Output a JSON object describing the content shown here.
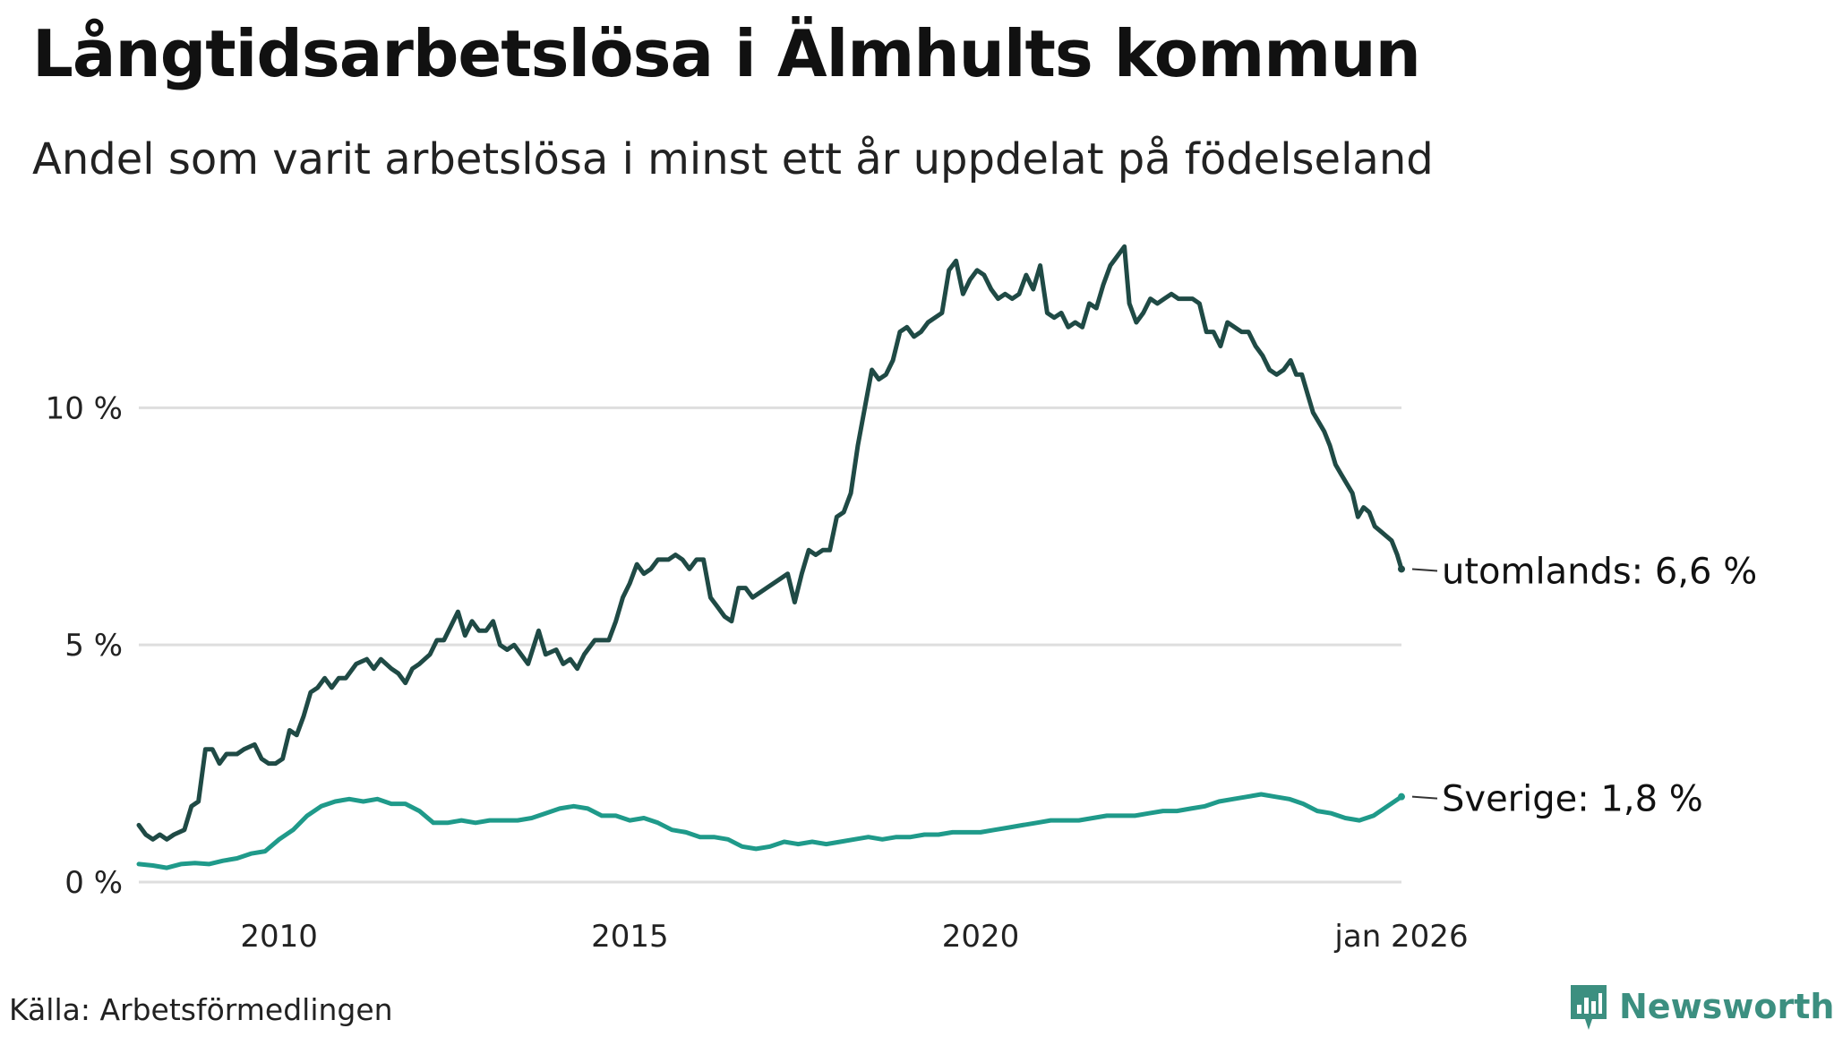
{
  "title": "Långtidsarbetslösa i Älmhults kommun",
  "subtitle": "Andel som varit arbetslösa i minst ett år uppdelat på födelseland",
  "source": "Källa: Arbetsförmedlingen",
  "brand": {
    "name": "Newsworthy",
    "icon": "newsworthy-logo-icon",
    "color": "#3c8f80"
  },
  "chart_data": {
    "type": "line",
    "title": "Långtidsarbetslösa i Älmhults kommun",
    "xlabel": "",
    "ylabel": "",
    "xlim": [
      2008.0,
      2026.0
    ],
    "ylim": [
      0,
      13.5
    ],
    "grid": true,
    "yticks": [
      {
        "value": 0,
        "label": "0 %"
      },
      {
        "value": 5,
        "label": "5 %"
      },
      {
        "value": 10,
        "label": "10 %"
      }
    ],
    "xticks": [
      {
        "value": 2010,
        "label": "2010"
      },
      {
        "value": 2015,
        "label": "2015"
      },
      {
        "value": 2020,
        "label": "2020"
      },
      {
        "value": 2026.0,
        "label": "jan 2026"
      }
    ],
    "series": [
      {
        "name": "utomlands",
        "end_label": "utomlands: 6,6 %",
        "color": "#1f4a45",
        "points": [
          [
            2008.0,
            1.2
          ],
          [
            2008.1,
            1.0
          ],
          [
            2008.2,
            0.9
          ],
          [
            2008.3,
            1.0
          ],
          [
            2008.4,
            0.9
          ],
          [
            2008.5,
            1.0
          ],
          [
            2008.65,
            1.1
          ],
          [
            2008.75,
            1.6
          ],
          [
            2008.85,
            1.7
          ],
          [
            2008.95,
            2.8
          ],
          [
            2009.05,
            2.8
          ],
          [
            2009.15,
            2.5
          ],
          [
            2009.25,
            2.7
          ],
          [
            2009.4,
            2.7
          ],
          [
            2009.5,
            2.8
          ],
          [
            2009.65,
            2.9
          ],
          [
            2009.75,
            2.6
          ],
          [
            2009.85,
            2.5
          ],
          [
            2009.95,
            2.5
          ],
          [
            2010.05,
            2.6
          ],
          [
            2010.15,
            3.2
          ],
          [
            2010.25,
            3.1
          ],
          [
            2010.35,
            3.5
          ],
          [
            2010.45,
            4.0
          ],
          [
            2010.55,
            4.1
          ],
          [
            2010.65,
            4.3
          ],
          [
            2010.75,
            4.1
          ],
          [
            2010.85,
            4.3
          ],
          [
            2010.95,
            4.3
          ],
          [
            2011.1,
            4.6
          ],
          [
            2011.25,
            4.7
          ],
          [
            2011.35,
            4.5
          ],
          [
            2011.45,
            4.7
          ],
          [
            2011.6,
            4.5
          ],
          [
            2011.7,
            4.4
          ],
          [
            2011.8,
            4.2
          ],
          [
            2011.9,
            4.5
          ],
          [
            2012.0,
            4.6
          ],
          [
            2012.15,
            4.8
          ],
          [
            2012.25,
            5.1
          ],
          [
            2012.35,
            5.1
          ],
          [
            2012.45,
            5.4
          ],
          [
            2012.55,
            5.7
          ],
          [
            2012.65,
            5.2
          ],
          [
            2012.75,
            5.5
          ],
          [
            2012.85,
            5.3
          ],
          [
            2012.95,
            5.3
          ],
          [
            2013.05,
            5.5
          ],
          [
            2013.15,
            5.0
          ],
          [
            2013.25,
            4.9
          ],
          [
            2013.35,
            5.0
          ],
          [
            2013.45,
            4.8
          ],
          [
            2013.55,
            4.6
          ],
          [
            2013.7,
            5.3
          ],
          [
            2013.8,
            4.8
          ],
          [
            2013.95,
            4.9
          ],
          [
            2014.05,
            4.6
          ],
          [
            2014.15,
            4.7
          ],
          [
            2014.25,
            4.5
          ],
          [
            2014.35,
            4.8
          ],
          [
            2014.5,
            5.1
          ],
          [
            2014.7,
            5.1
          ],
          [
            2014.8,
            5.5
          ],
          [
            2014.9,
            6.0
          ],
          [
            2015.0,
            6.3
          ],
          [
            2015.1,
            6.7
          ],
          [
            2015.2,
            6.5
          ],
          [
            2015.3,
            6.6
          ],
          [
            2015.4,
            6.8
          ],
          [
            2015.55,
            6.8
          ],
          [
            2015.65,
            6.9
          ],
          [
            2015.75,
            6.8
          ],
          [
            2015.85,
            6.6
          ],
          [
            2015.95,
            6.8
          ],
          [
            2016.05,
            6.8
          ],
          [
            2016.15,
            6.0
          ],
          [
            2016.25,
            5.8
          ],
          [
            2016.35,
            5.6
          ],
          [
            2016.45,
            5.5
          ],
          [
            2016.55,
            6.2
          ],
          [
            2016.65,
            6.2
          ],
          [
            2016.75,
            6.0
          ],
          [
            2016.85,
            6.1
          ],
          [
            2016.95,
            6.2
          ],
          [
            2017.05,
            6.3
          ],
          [
            2017.15,
            6.4
          ],
          [
            2017.25,
            6.5
          ],
          [
            2017.35,
            5.9
          ],
          [
            2017.45,
            6.5
          ],
          [
            2017.55,
            7.0
          ],
          [
            2017.65,
            6.9
          ],
          [
            2017.75,
            7.0
          ],
          [
            2017.85,
            7.0
          ],
          [
            2017.95,
            7.7
          ],
          [
            2018.05,
            7.8
          ],
          [
            2018.15,
            8.2
          ],
          [
            2018.25,
            9.2
          ],
          [
            2018.35,
            10.0
          ],
          [
            2018.45,
            10.8
          ],
          [
            2018.55,
            10.6
          ],
          [
            2018.65,
            10.7
          ],
          [
            2018.75,
            11.0
          ],
          [
            2018.85,
            11.6
          ],
          [
            2018.95,
            11.7
          ],
          [
            2019.05,
            11.5
          ],
          [
            2019.15,
            11.6
          ],
          [
            2019.25,
            11.8
          ],
          [
            2019.35,
            11.9
          ],
          [
            2019.45,
            12.0
          ],
          [
            2019.55,
            12.9
          ],
          [
            2019.65,
            13.1
          ],
          [
            2019.75,
            12.4
          ],
          [
            2019.85,
            12.7
          ],
          [
            2019.95,
            12.9
          ],
          [
            2020.05,
            12.8
          ],
          [
            2020.15,
            12.5
          ],
          [
            2020.25,
            12.3
          ],
          [
            2020.35,
            12.4
          ],
          [
            2020.45,
            12.3
          ],
          [
            2020.55,
            12.4
          ],
          [
            2020.65,
            12.8
          ],
          [
            2020.75,
            12.5
          ],
          [
            2020.85,
            13.0
          ],
          [
            2020.95,
            12.0
          ],
          [
            2021.05,
            11.9
          ],
          [
            2021.15,
            12.0
          ],
          [
            2021.25,
            11.7
          ],
          [
            2021.35,
            11.8
          ],
          [
            2021.45,
            11.7
          ],
          [
            2021.55,
            12.2
          ],
          [
            2021.65,
            12.1
          ],
          [
            2021.75,
            12.6
          ],
          [
            2021.85,
            13.0
          ],
          [
            2021.95,
            13.2
          ],
          [
            2022.05,
            13.4
          ],
          [
            2022.12,
            12.2
          ],
          [
            2022.22,
            11.8
          ],
          [
            2022.32,
            12.0
          ],
          [
            2022.42,
            12.3
          ],
          [
            2022.52,
            12.2
          ],
          [
            2022.62,
            12.3
          ],
          [
            2022.72,
            12.4
          ],
          [
            2022.82,
            12.3
          ],
          [
            2022.92,
            12.3
          ],
          [
            2023.02,
            12.3
          ],
          [
            2023.12,
            12.2
          ],
          [
            2023.22,
            11.6
          ],
          [
            2023.32,
            11.6
          ],
          [
            2023.42,
            11.3
          ],
          [
            2023.52,
            11.8
          ],
          [
            2023.62,
            11.7
          ],
          [
            2023.72,
            11.6
          ],
          [
            2023.82,
            11.6
          ],
          [
            2023.92,
            11.3
          ],
          [
            2024.02,
            11.1
          ],
          [
            2024.12,
            10.8
          ],
          [
            2024.22,
            10.7
          ],
          [
            2024.32,
            10.8
          ],
          [
            2024.42,
            11.0
          ],
          [
            2024.5,
            10.7
          ],
          [
            2024.58,
            10.7
          ],
          [
            2024.66,
            10.3
          ],
          [
            2024.74,
            9.9
          ],
          [
            2024.82,
            9.7
          ],
          [
            2024.9,
            9.5
          ],
          [
            2024.98,
            9.2
          ],
          [
            2025.06,
            8.8
          ],
          [
            2025.14,
            8.6
          ],
          [
            2025.22,
            8.4
          ],
          [
            2025.3,
            8.2
          ],
          [
            2025.38,
            7.7
          ],
          [
            2025.46,
            7.9
          ],
          [
            2025.54,
            7.8
          ],
          [
            2025.62,
            7.5
          ],
          [
            2025.7,
            7.4
          ],
          [
            2025.78,
            7.3
          ],
          [
            2025.86,
            7.2
          ],
          [
            2025.94,
            6.9
          ],
          [
            2026.0,
            6.6
          ]
        ]
      },
      {
        "name": "Sverige",
        "end_label": "Sverige: 1,8 %",
        "color": "#1f9a8a",
        "points": [
          [
            2008.0,
            0.38
          ],
          [
            2008.2,
            0.35
          ],
          [
            2008.4,
            0.3
          ],
          [
            2008.6,
            0.38
          ],
          [
            2008.8,
            0.4
          ],
          [
            2009.0,
            0.38
          ],
          [
            2009.2,
            0.45
          ],
          [
            2009.4,
            0.5
          ],
          [
            2009.6,
            0.6
          ],
          [
            2009.8,
            0.65
          ],
          [
            2010.0,
            0.9
          ],
          [
            2010.2,
            1.1
          ],
          [
            2010.4,
            1.4
          ],
          [
            2010.6,
            1.6
          ],
          [
            2010.8,
            1.7
          ],
          [
            2011.0,
            1.75
          ],
          [
            2011.2,
            1.7
          ],
          [
            2011.4,
            1.75
          ],
          [
            2011.6,
            1.65
          ],
          [
            2011.8,
            1.65
          ],
          [
            2012.0,
            1.5
          ],
          [
            2012.2,
            1.25
          ],
          [
            2012.4,
            1.25
          ],
          [
            2012.6,
            1.3
          ],
          [
            2012.8,
            1.25
          ],
          [
            2013.0,
            1.3
          ],
          [
            2013.2,
            1.3
          ],
          [
            2013.4,
            1.3
          ],
          [
            2013.6,
            1.35
          ],
          [
            2013.8,
            1.45
          ],
          [
            2014.0,
            1.55
          ],
          [
            2014.2,
            1.6
          ],
          [
            2014.4,
            1.55
          ],
          [
            2014.6,
            1.4
          ],
          [
            2014.8,
            1.4
          ],
          [
            2015.0,
            1.3
          ],
          [
            2015.2,
            1.35
          ],
          [
            2015.4,
            1.25
          ],
          [
            2015.6,
            1.1
          ],
          [
            2015.8,
            1.05
          ],
          [
            2016.0,
            0.95
          ],
          [
            2016.2,
            0.95
          ],
          [
            2016.4,
            0.9
          ],
          [
            2016.6,
            0.75
          ],
          [
            2016.8,
            0.7
          ],
          [
            2017.0,
            0.75
          ],
          [
            2017.2,
            0.85
          ],
          [
            2017.4,
            0.8
          ],
          [
            2017.6,
            0.85
          ],
          [
            2017.8,
            0.8
          ],
          [
            2018.0,
            0.85
          ],
          [
            2018.2,
            0.9
          ],
          [
            2018.4,
            0.95
          ],
          [
            2018.6,
            0.9
          ],
          [
            2018.8,
            0.95
          ],
          [
            2019.0,
            0.95
          ],
          [
            2019.2,
            1.0
          ],
          [
            2019.4,
            1.0
          ],
          [
            2019.6,
            1.05
          ],
          [
            2019.8,
            1.05
          ],
          [
            2020.0,
            1.05
          ],
          [
            2020.2,
            1.1
          ],
          [
            2020.4,
            1.15
          ],
          [
            2020.6,
            1.2
          ],
          [
            2020.8,
            1.25
          ],
          [
            2021.0,
            1.3
          ],
          [
            2021.2,
            1.3
          ],
          [
            2021.4,
            1.3
          ],
          [
            2021.6,
            1.35
          ],
          [
            2021.8,
            1.4
          ],
          [
            2022.0,
            1.4
          ],
          [
            2022.2,
            1.4
          ],
          [
            2022.4,
            1.45
          ],
          [
            2022.6,
            1.5
          ],
          [
            2022.8,
            1.5
          ],
          [
            2023.0,
            1.55
          ],
          [
            2023.2,
            1.6
          ],
          [
            2023.4,
            1.7
          ],
          [
            2023.6,
            1.75
          ],
          [
            2023.8,
            1.8
          ],
          [
            2024.0,
            1.85
          ],
          [
            2024.2,
            1.8
          ],
          [
            2024.4,
            1.75
          ],
          [
            2024.6,
            1.65
          ],
          [
            2024.8,
            1.5
          ],
          [
            2025.0,
            1.45
          ],
          [
            2025.2,
            1.35
          ],
          [
            2025.4,
            1.3
          ],
          [
            2025.6,
            1.4
          ],
          [
            2025.8,
            1.6
          ],
          [
            2026.0,
            1.8
          ]
        ]
      }
    ]
  }
}
